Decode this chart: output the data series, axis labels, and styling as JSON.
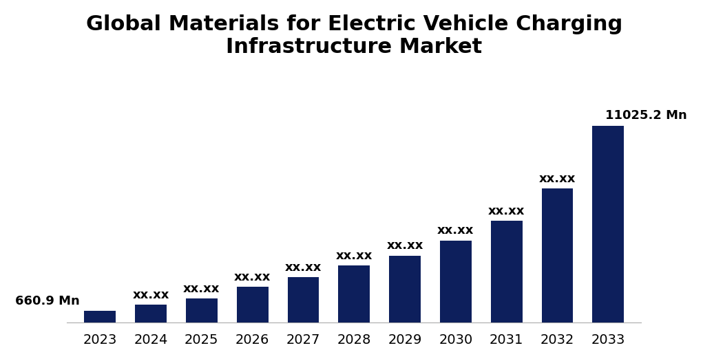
{
  "title": "Global Materials for Electric Vehicle Charging\nInfrastructure Market",
  "years": [
    2023,
    2024,
    2025,
    2026,
    2027,
    2028,
    2029,
    2030,
    2031,
    2032,
    2033
  ],
  "values": [
    660.9,
    1000,
    1350,
    2000,
    2550,
    3200,
    3750,
    4600,
    5700,
    7500,
    11025.2
  ],
  "bar_color": "#0d1f5c",
  "label_first": "660.9 Mn",
  "label_last": "11025.2 Mn",
  "label_middle": "xx.xx",
  "background_color": "#ffffff",
  "title_fontsize": 22,
  "tick_fontsize": 14,
  "annotation_fontsize": 13,
  "ylim": [
    0,
    14000
  ]
}
